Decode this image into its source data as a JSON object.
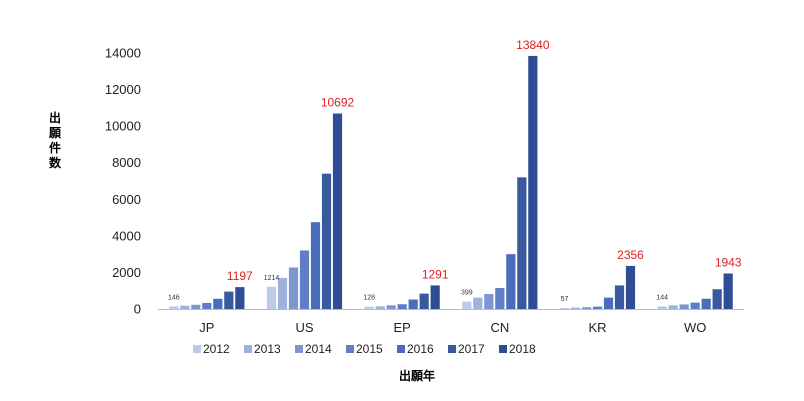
{
  "chart_data": {
    "type": "bar",
    "ylabel": "出願件数",
    "xlabel": "出願年",
    "ylim": [
      0,
      14000
    ],
    "yticks": [
      0,
      2000,
      4000,
      6000,
      8000,
      10000,
      12000,
      14000
    ],
    "grid": false,
    "legend_position": "bottom",
    "categories": [
      "JP",
      "US",
      "EP",
      "CN",
      "KR",
      "WO"
    ],
    "series": [
      {
        "name": "2012",
        "color": "#bccbe6",
        "values": [
          146,
          1214,
          128,
          399,
          57,
          144
        ]
      },
      {
        "name": "2013",
        "color": "#9fb2db",
        "values": [
          180,
          1700,
          150,
          620,
          75,
          200
        ]
      },
      {
        "name": "2014",
        "color": "#7c97cf",
        "values": [
          230,
          2270,
          200,
          820,
          95,
          250
        ]
      },
      {
        "name": "2015",
        "color": "#5e7fc4",
        "values": [
          330,
          3200,
          260,
          1150,
          130,
          350
        ]
      },
      {
        "name": "2016",
        "color": "#4a6dbb",
        "values": [
          560,
          4750,
          520,
          3000,
          620,
          560
        ]
      },
      {
        "name": "2017",
        "color": "#39599f",
        "values": [
          950,
          7400,
          840,
          7200,
          1290,
          1080
        ]
      },
      {
        "name": "2018",
        "color": "#2f4d95",
        "values": [
          1197,
          10692,
          1291,
          13840,
          2356,
          1943
        ]
      }
    ],
    "data_labels": [
      {
        "category": "JP",
        "series": "2012",
        "text": "146",
        "style": "small"
      },
      {
        "category": "JP",
        "series": "2018",
        "text": "1197",
        "style": "red"
      },
      {
        "category": "US",
        "series": "2012",
        "text": "1214",
        "style": "small"
      },
      {
        "category": "US",
        "series": "2018",
        "text": "10692",
        "style": "red"
      },
      {
        "category": "EP",
        "series": "2012",
        "text": "128",
        "style": "small"
      },
      {
        "category": "EP",
        "series": "2018",
        "text": "1291",
        "style": "red"
      },
      {
        "category": "CN",
        "series": "2012",
        "text": "399",
        "style": "small"
      },
      {
        "category": "CN",
        "series": "2018",
        "text": "13840",
        "style": "red"
      },
      {
        "category": "KR",
        "series": "2012",
        "text": "57",
        "style": "small"
      },
      {
        "category": "KR",
        "series": "2018",
        "text": "2356",
        "style": "red"
      },
      {
        "category": "WO",
        "series": "2012",
        "text": "144",
        "style": "small"
      },
      {
        "category": "WO",
        "series": "2018",
        "text": "1943",
        "style": "red"
      }
    ]
  }
}
